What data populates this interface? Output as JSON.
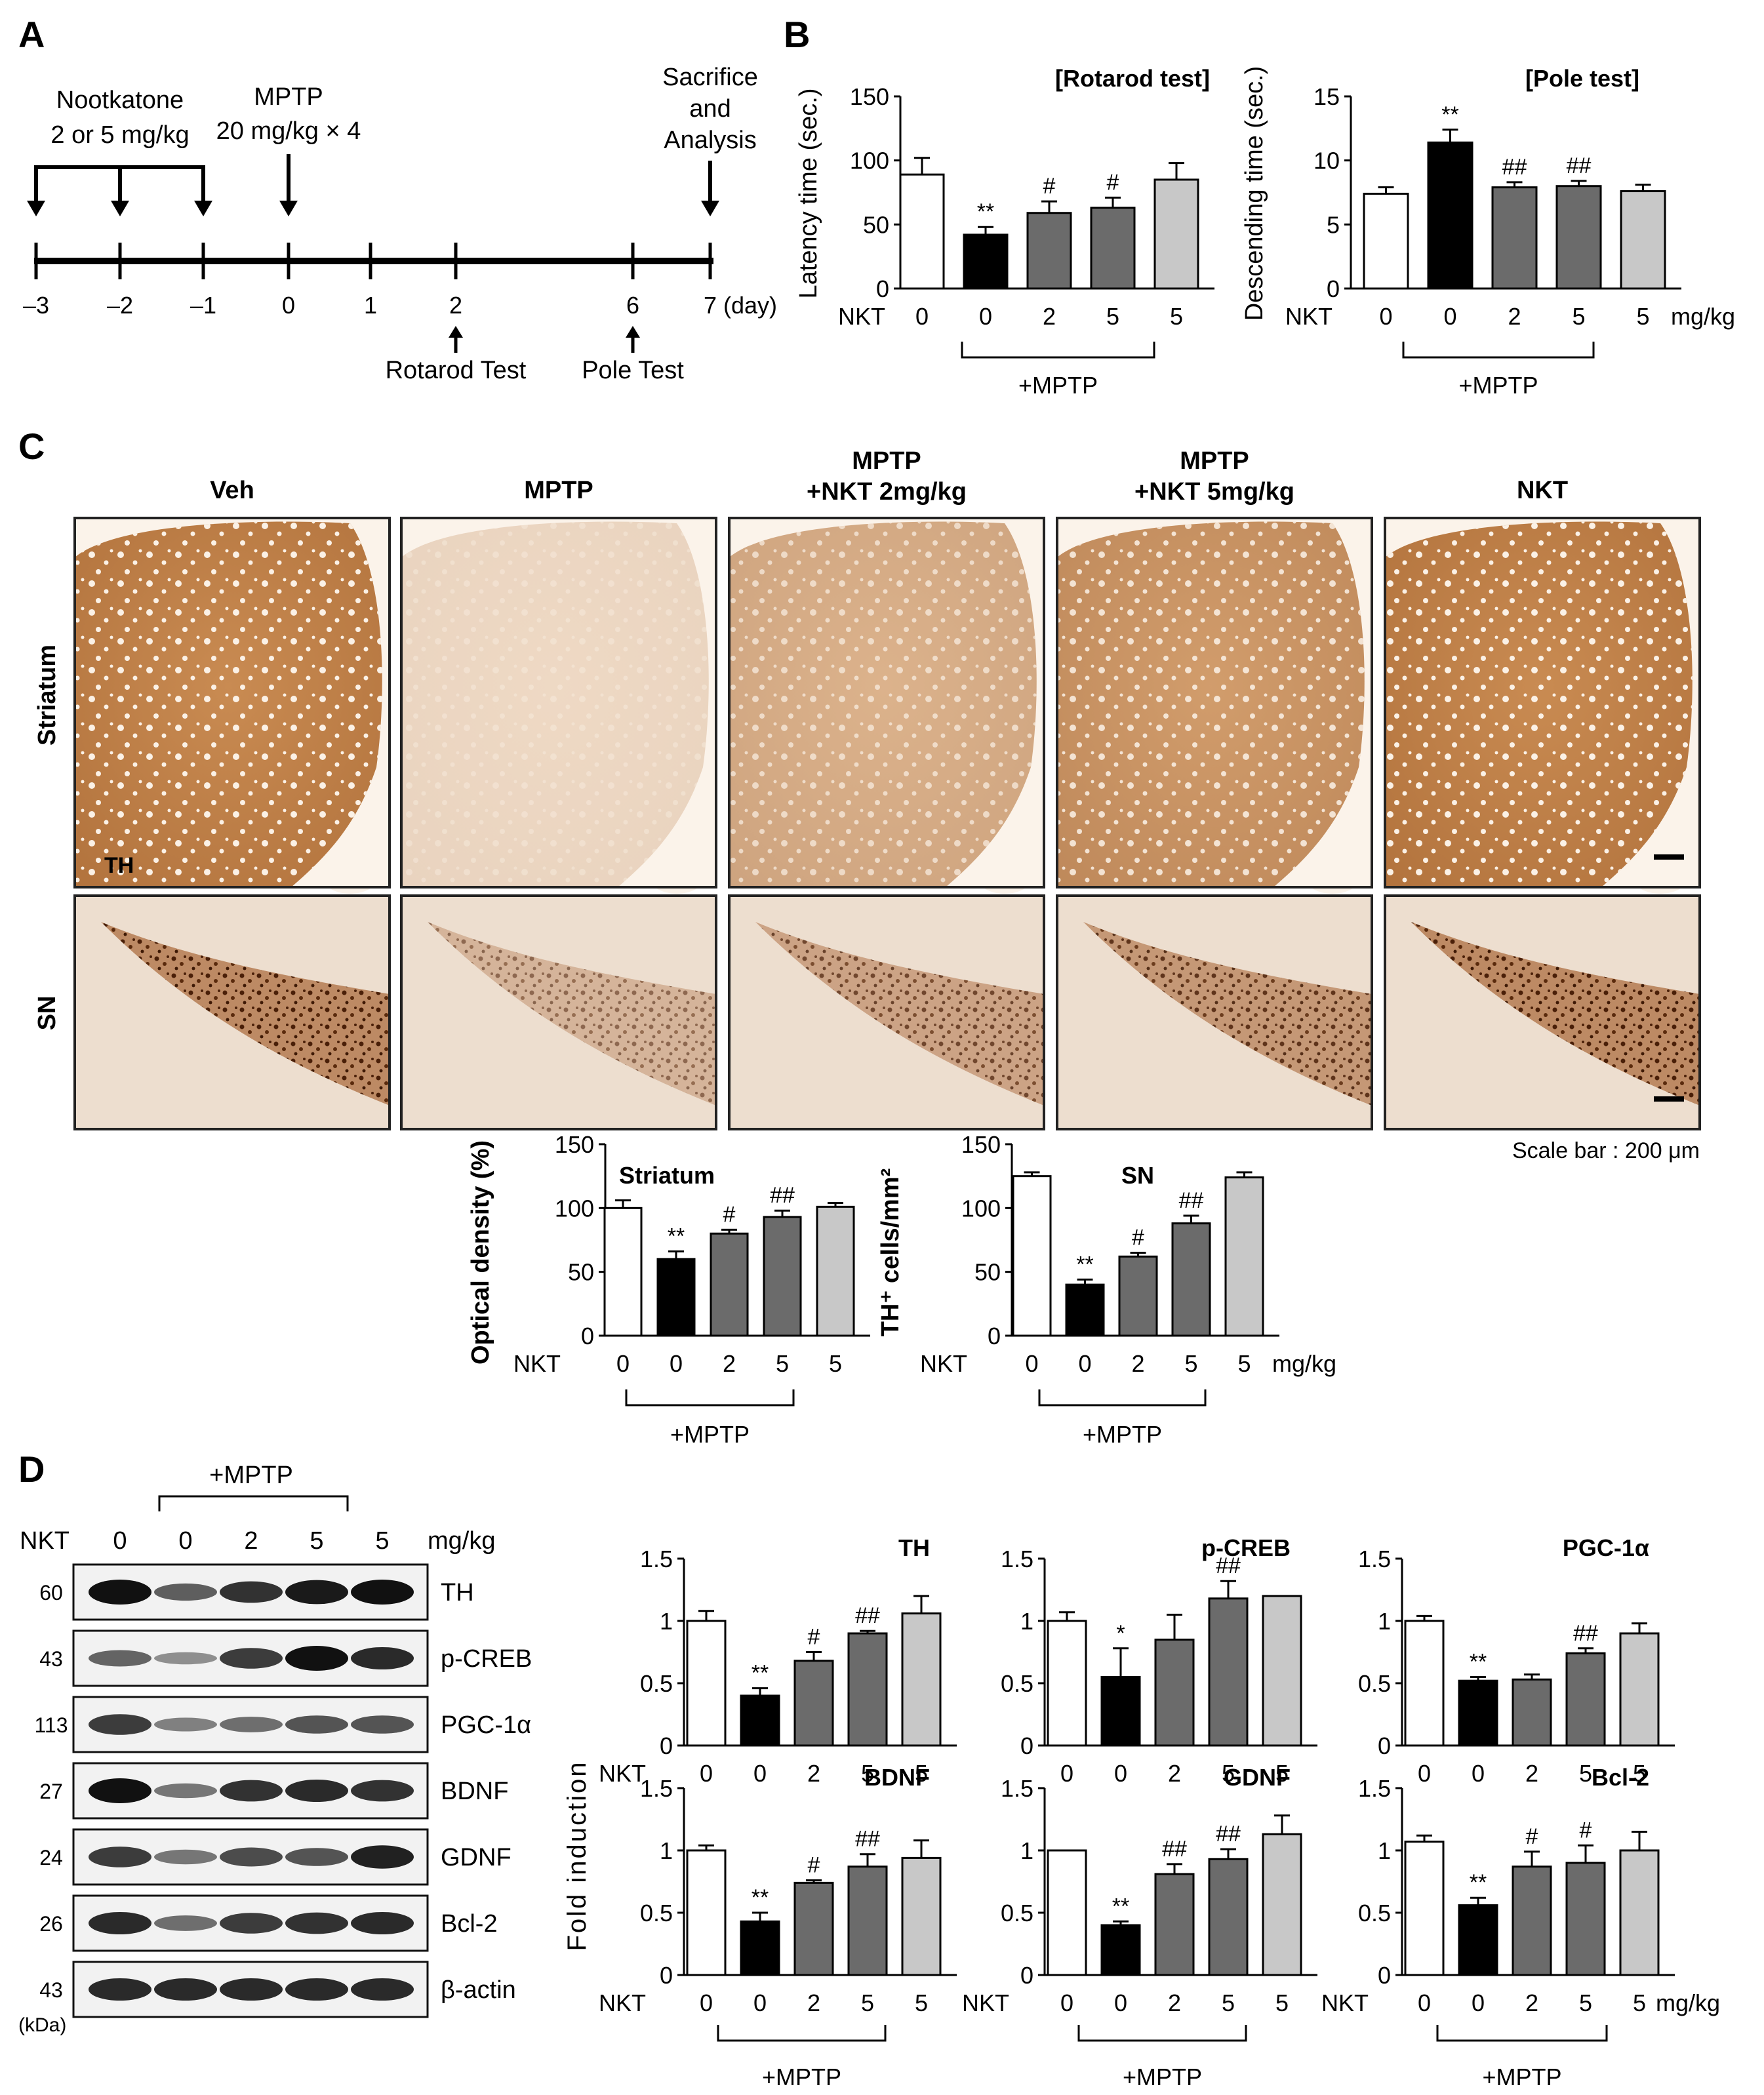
{
  "panel_letters": {
    "a": "A",
    "b": "B",
    "c": "C",
    "d": "D"
  },
  "timeline": {
    "treatment1": [
      "Nootkatone",
      "2 or 5 mg/kg"
    ],
    "treatment2": [
      "MPTP",
      "20 mg/kg × 4"
    ],
    "endpoint": [
      "Sacrifice",
      "and",
      "Analysis"
    ],
    "ticks": [
      "–3",
      "–2",
      "–1",
      "0",
      "1",
      "2",
      "6",
      "7"
    ],
    "day_unit": "(day)",
    "test1": "Rotarod Test",
    "test2": "Pole Test"
  },
  "common": {
    "nkt_label": "NKT",
    "dose_labels": [
      "0",
      "0",
      "2",
      "5",
      "5"
    ],
    "mpt_group": "+MPTP",
    "unit": "mg/kg",
    "bar_colors": [
      "#ffffff",
      "#000000",
      "#6b6b6b",
      "#6b6b6b",
      "#c8c8c8"
    ]
  },
  "histology": {
    "columns": [
      "Veh",
      "MPTP",
      "MPTP\n+NKT 2mg/kg",
      "MPTP\n+NKT 5mg/kg",
      "NKT"
    ],
    "rows": [
      "Striatum",
      "SN"
    ],
    "stain_label": "TH",
    "scale_bar": "Scale bar : 200 μm",
    "striatum_intensity": [
      1.0,
      0.12,
      0.55,
      0.8,
      1.0
    ],
    "sn_intensity": [
      1.0,
      0.35,
      0.6,
      0.78,
      1.0
    ]
  },
  "western": {
    "mptp_bracket": "+MPTP",
    "nkt_label": "NKT",
    "lane_labels": [
      "0",
      "0",
      "2",
      "5",
      "5"
    ],
    "unit": "mg/kg",
    "kda_label": "(kDa)",
    "bands": [
      {
        "name": "TH",
        "kda": "60",
        "intensity": [
          1.0,
          0.55,
          0.8,
          0.95,
          1.0
        ]
      },
      {
        "name": "p-CREB",
        "kda": "43",
        "intensity": [
          0.5,
          0.25,
          0.75,
          1.0,
          0.85
        ]
      },
      {
        "name": "PGC-1α",
        "kda": "113",
        "intensity": [
          0.75,
          0.35,
          0.45,
          0.6,
          0.6
        ]
      },
      {
        "name": "BDNF",
        "kda": "27",
        "intensity": [
          1.0,
          0.4,
          0.8,
          0.85,
          0.8
        ]
      },
      {
        "name": "GDNF",
        "kda": "24",
        "intensity": [
          0.75,
          0.4,
          0.65,
          0.6,
          0.9
        ]
      },
      {
        "name": "Bcl-2",
        "kda": "26",
        "intensity": [
          0.85,
          0.45,
          0.75,
          0.8,
          0.85
        ]
      },
      {
        "name": "β-actin",
        "kda": "43",
        "intensity": [
          0.85,
          0.85,
          0.85,
          0.85,
          0.85
        ]
      }
    ]
  },
  "fold_axis_label": "Fold induction",
  "chart_data": [
    {
      "id": "rotarod",
      "type": "bar",
      "title": "[Rotarod test]",
      "ylabel": "Latency time (sec.)",
      "categories": [
        "0",
        "0",
        "2",
        "5",
        "5"
      ],
      "values": [
        89,
        42,
        59,
        63,
        85
      ],
      "errors": [
        13,
        6,
        9,
        8,
        13
      ],
      "annotations": [
        "",
        "**",
        "#",
        "#",
        ""
      ],
      "ylim": [
        0,
        150
      ],
      "yticks": [
        "0",
        "50",
        "100",
        "150"
      ]
    },
    {
      "id": "pole",
      "type": "bar",
      "title": "[Pole test]",
      "ylabel": "Descending time (sec.)",
      "categories": [
        "0",
        "0",
        "2",
        "5",
        "5"
      ],
      "values": [
        7.4,
        11.4,
        7.9,
        8.0,
        7.6
      ],
      "errors": [
        0.5,
        1.0,
        0.4,
        0.4,
        0.5
      ],
      "annotations": [
        "",
        "**",
        "##",
        "##",
        ""
      ],
      "ylim": [
        0,
        15
      ],
      "yticks": [
        "0",
        "5",
        "10",
        "15"
      ]
    },
    {
      "id": "striatum",
      "type": "bar",
      "title": "Striatum",
      "ylabel": "Optical density (%)",
      "categories": [
        "0",
        "0",
        "2",
        "5",
        "5"
      ],
      "values": [
        100,
        60,
        80,
        93,
        101
      ],
      "errors": [
        6,
        6,
        3,
        5,
        3
      ],
      "annotations": [
        "",
        "**",
        "#",
        "##",
        ""
      ],
      "ylim": [
        0,
        150
      ],
      "yticks": [
        "0",
        "50",
        "100",
        "150"
      ]
    },
    {
      "id": "sn",
      "type": "bar",
      "title": "SN",
      "ylabel": "TH⁺ cells/mm²",
      "categories": [
        "0",
        "0",
        "2",
        "5",
        "5"
      ],
      "values": [
        125,
        40,
        62,
        88,
        124
      ],
      "errors": [
        3,
        4,
        3,
        6,
        4
      ],
      "annotations": [
        "",
        "**",
        "#",
        "##",
        ""
      ],
      "ylim": [
        0,
        150
      ],
      "yticks": [
        "0",
        "50",
        "100",
        "150"
      ]
    },
    {
      "id": "th",
      "type": "bar",
      "title": "TH",
      "ylabel": "",
      "categories": [
        "0",
        "0",
        "2",
        "5",
        "5"
      ],
      "values": [
        1.0,
        0.4,
        0.68,
        0.9,
        1.06
      ],
      "errors": [
        0.08,
        0.06,
        0.07,
        0.02,
        0.14
      ],
      "annotations": [
        "",
        "**",
        "#",
        "##",
        ""
      ],
      "ylim": [
        0,
        1.5
      ],
      "yticks": [
        "0",
        "0.5",
        "1",
        "1.5"
      ]
    },
    {
      "id": "pcreb",
      "type": "bar",
      "title": "p-CREB",
      "ylabel": "",
      "categories": [
        "0",
        "0",
        "2",
        "5",
        "5"
      ],
      "values": [
        1.0,
        0.55,
        0.85,
        1.18,
        1.2
      ],
      "errors": [
        0.07,
        0.23,
        0.2,
        0.14,
        0.0
      ],
      "annotations": [
        "",
        "*",
        "",
        "##",
        ""
      ],
      "ylim": [
        0,
        1.5
      ],
      "yticks": [
        "0",
        "0.5",
        "1",
        "1.5"
      ]
    },
    {
      "id": "pgc",
      "type": "bar",
      "title": "PGC-1α",
      "ylabel": "",
      "categories": [
        "0",
        "0",
        "2",
        "5",
        "5"
      ],
      "values": [
        1.0,
        0.52,
        0.53,
        0.74,
        0.9
      ],
      "errors": [
        0.04,
        0.03,
        0.04,
        0.04,
        0.08
      ],
      "annotations": [
        "",
        "**",
        "",
        "##",
        ""
      ],
      "ylim": [
        0,
        1.5
      ],
      "yticks": [
        "0",
        "0.5",
        "1",
        "1.5"
      ]
    },
    {
      "id": "bdnf",
      "type": "bar",
      "title": "BDNF",
      "ylabel": "",
      "categories": [
        "0",
        "0",
        "2",
        "5",
        "5"
      ],
      "values": [
        1.0,
        0.43,
        0.74,
        0.87,
        0.94
      ],
      "errors": [
        0.04,
        0.07,
        0.02,
        0.1,
        0.14
      ],
      "annotations": [
        "",
        "**",
        "#",
        "##",
        ""
      ],
      "ylim": [
        0,
        1.5
      ],
      "yticks": [
        "0",
        "0.5",
        "1",
        "1.5"
      ]
    },
    {
      "id": "gdnf",
      "type": "bar",
      "title": "GDNF",
      "ylabel": "",
      "categories": [
        "0",
        "0",
        "2",
        "5",
        "5"
      ],
      "values": [
        1.0,
        0.4,
        0.81,
        0.93,
        1.13
      ],
      "errors": [
        0.0,
        0.03,
        0.08,
        0.08,
        0.15
      ],
      "annotations": [
        "",
        "**",
        "##",
        "##",
        ""
      ],
      "ylim": [
        0,
        1.5
      ],
      "yticks": [
        "0",
        "0.5",
        "1",
        "1.5"
      ]
    },
    {
      "id": "bcl2",
      "type": "bar",
      "title": "Bcl-2",
      "ylabel": "",
      "categories": [
        "0",
        "0",
        "2",
        "5",
        "5"
      ],
      "values": [
        1.07,
        0.56,
        0.87,
        0.9,
        1.0
      ],
      "errors": [
        0.05,
        0.06,
        0.12,
        0.14,
        0.15
      ],
      "annotations": [
        "",
        "**",
        "#",
        "#",
        ""
      ],
      "ylim": [
        0,
        1.5
      ],
      "yticks": [
        "0",
        "0.5",
        "1",
        "1.5"
      ]
    }
  ]
}
